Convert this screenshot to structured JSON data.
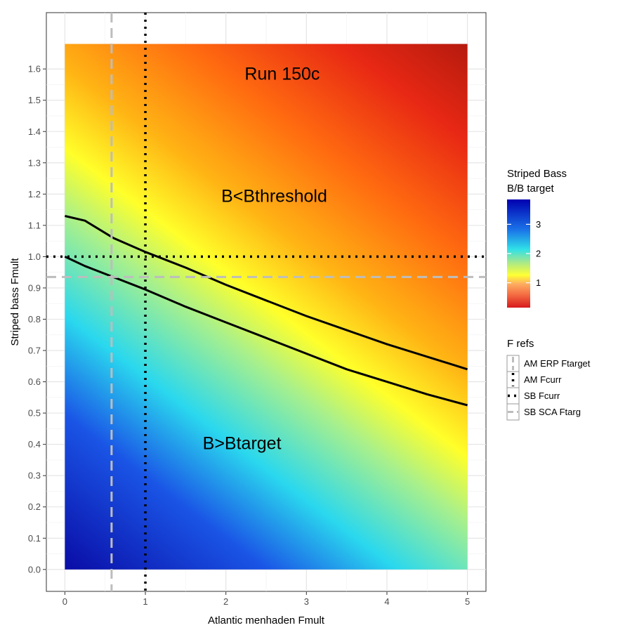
{
  "chart_data": {
    "type": "heatmap",
    "xlabel": "Atlantic menhaden Fmult",
    "ylabel": "Striped bass Fmult",
    "xlim": [
      -0.23,
      5.23
    ],
    "ylim": [
      -0.07,
      1.78
    ],
    "x_ticks": [
      "0",
      "1",
      "2",
      "3",
      "4",
      "5"
    ],
    "y_ticks": [
      "0.0",
      "0.1",
      "0.2",
      "0.3",
      "0.4",
      "0.5",
      "0.6",
      "0.7",
      "0.8",
      "0.9",
      "1.0",
      "1.1",
      "1.2",
      "1.3",
      "1.4",
      "1.5",
      "1.6"
    ],
    "grid": true,
    "surface": {
      "x_range": [
        0,
        5
      ],
      "y_range": [
        0,
        1.68
      ],
      "fill": "Striped Bass B/B target"
    },
    "annotations": [
      {
        "text": "Run 150c",
        "x": 2.7,
        "y": 1.58
      },
      {
        "text": "B<Bthreshold",
        "x": 2.6,
        "y": 1.19
      },
      {
        "text": "B>Btarget",
        "x": 2.2,
        "y": 0.4
      }
    ],
    "contours": [
      {
        "level": "Bthreshold",
        "x": [
          0,
          0.25,
          0.6,
          1.0,
          1.5,
          2.0,
          2.5,
          3.0,
          3.5,
          4.0,
          4.5,
          5.0
        ],
        "y": [
          1.13,
          1.115,
          1.06,
          1.015,
          0.965,
          0.91,
          0.86,
          0.81,
          0.765,
          0.72,
          0.68,
          0.64
        ]
      },
      {
        "level": "Btarget",
        "x": [
          0,
          0.25,
          0.6,
          1.0,
          1.5,
          2.0,
          2.5,
          3.0,
          3.5,
          4.0,
          4.5,
          5.0
        ],
        "y": [
          1.0,
          0.97,
          0.935,
          0.895,
          0.84,
          0.79,
          0.74,
          0.69,
          0.64,
          0.6,
          0.56,
          0.525
        ]
      }
    ],
    "reference_lines": [
      {
        "name": "AM ERP Ftarget",
        "orientation": "vertical",
        "value": 0.58,
        "style": "dashed",
        "color": "#bdbdbd"
      },
      {
        "name": "AM Fcurr",
        "orientation": "vertical",
        "value": 1.0,
        "style": "dotted",
        "color": "#000000"
      },
      {
        "name": "SB Fcurr",
        "orientation": "horizontal",
        "value": 1.0,
        "style": "dotted",
        "color": "#000000"
      },
      {
        "name": "SB SCA Ftarg",
        "orientation": "horizontal",
        "value": 0.935,
        "style": "dashed",
        "color": "#bdbdbd"
      }
    ],
    "color_legend": {
      "title_line1": "Striped Bass",
      "title_line2": "B/B target",
      "ticks": [
        "1",
        "2",
        "3"
      ],
      "range": [
        0.15,
        3.85
      ],
      "colors": [
        "#d7191c",
        "#f46d43",
        "#fdae61",
        "#ffff33",
        "#a6e88c",
        "#2fe0e8",
        "#1a73e8",
        "#0000b0"
      ]
    },
    "line_legend": {
      "title": "F refs",
      "entries": [
        "AM ERP Ftarget",
        "AM Fcurr",
        "SB Fcurr",
        "SB SCA Ftarg"
      ]
    },
    "legend_position": "right"
  }
}
